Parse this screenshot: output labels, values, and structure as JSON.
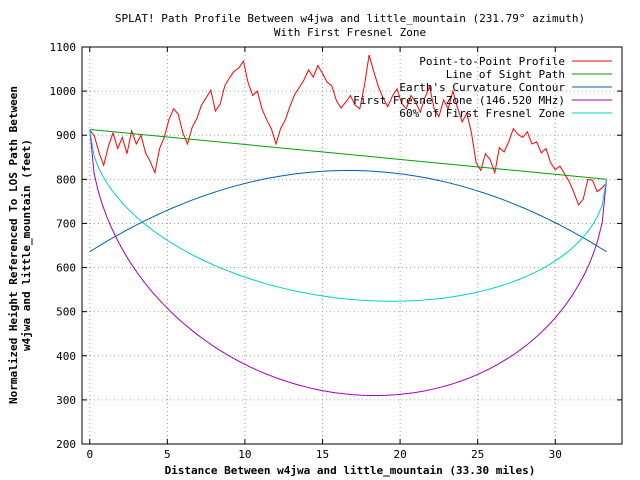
{
  "chart_data": {
    "type": "line",
    "title": "SPLAT! Path Profile Between w4jwa and little_mountain (231.79° azimuth)",
    "subtitle": "With First Fresnel Zone",
    "xlabel": "Distance Between w4jwa and little_mountain (33.30 miles)",
    "ylabel_line1": "Normalized Height Referenced To LOS Path Between",
    "ylabel_line2": "w4jwa and little_mountain (feet)",
    "xlim": [
      -0.5,
      34.3
    ],
    "ylim": [
      200,
      1100
    ],
    "x_ticks": [
      "0",
      "5",
      "10",
      "15",
      "20",
      "25",
      "30"
    ],
    "x_tick_values": [
      0,
      5,
      10,
      15,
      20,
      25,
      30
    ],
    "y_ticks": [
      "200",
      "300",
      "400",
      "500",
      "600",
      "700",
      "800",
      "900",
      "1000",
      "1100"
    ],
    "y_tick_values": [
      200,
      300,
      400,
      500,
      600,
      700,
      800,
      900,
      1000,
      1100
    ],
    "grid": true,
    "legend_position": "top-right",
    "series": [
      {
        "name": "Point-to-Point Profile",
        "color": "#ff0000",
        "x": [
          0,
          0.3,
          0.6,
          0.9,
          1.2,
          1.5,
          1.8,
          2.1,
          2.4,
          2.7,
          3.0,
          3.3,
          3.6,
          3.9,
          4.2,
          4.5,
          4.8,
          5.1,
          5.4,
          5.7,
          6.0,
          6.3,
          6.6,
          6.9,
          7.2,
          7.5,
          7.8,
          8.1,
          8.4,
          8.7,
          9.0,
          9.3,
          9.6,
          9.9,
          10.2,
          10.5,
          10.8,
          11.1,
          11.4,
          11.7,
          12.0,
          12.3,
          12.6,
          12.9,
          13.2,
          13.5,
          13.8,
          14.1,
          14.4,
          14.7,
          15.0,
          15.3,
          15.6,
          15.9,
          16.2,
          16.5,
          16.8,
          17.1,
          17.4,
          17.7,
          18.0,
          18.3,
          18.6,
          18.9,
          19.2,
          19.5,
          19.8,
          20.1,
          20.4,
          20.7,
          21.0,
          21.3,
          21.6,
          21.9,
          22.2,
          22.5,
          22.8,
          23.1,
          23.4,
          23.7,
          24.0,
          24.3,
          24.6,
          24.9,
          25.2,
          25.5,
          25.8,
          26.1,
          26.4,
          26.7,
          27.0,
          27.3,
          27.6,
          27.9,
          28.2,
          28.5,
          28.8,
          29.1,
          29.4,
          29.7,
          30.0,
          30.3,
          30.6,
          30.9,
          31.2,
          31.5,
          31.8,
          32.1,
          32.4,
          32.7,
          33.0,
          33.3
        ],
        "y": [
          912,
          898,
          860,
          832,
          875,
          905,
          870,
          895,
          858,
          910,
          880,
          900,
          860,
          840,
          815,
          870,
          895,
          935,
          960,
          948,
          905,
          880,
          918,
          938,
          968,
          985,
          1002,
          955,
          970,
          1012,
          1030,
          1045,
          1052,
          1068,
          1020,
          990,
          1000,
          960,
          935,
          915,
          880,
          915,
          935,
          965,
          992,
          1008,
          1025,
          1048,
          1032,
          1058,
          1040,
          1020,
          1012,
          978,
          962,
          975,
          990,
          968,
          960,
          1012,
          1082,
          1045,
          1010,
          985,
          965,
          988,
          1005,
          972,
          960,
          990,
          975,
          952,
          985,
          1010,
          960,
          942,
          980,
          960,
          1000,
          962,
          930,
          950,
          905,
          838,
          820,
          858,
          845,
          815,
          872,
          862,
          885,
          915,
          902,
          895,
          908,
          880,
          885,
          860,
          870,
          838,
          822,
          830,
          812,
          795,
          770,
          742,
          755,
          800,
          798,
          772,
          780,
          792
        ]
      },
      {
        "name": "Line of Sight Path",
        "color": "#00a000",
        "x": [
          0,
          33.3
        ],
        "y": [
          913,
          800
        ]
      },
      {
        "name": "Earth's Curvature Contour",
        "color": "#0060b0",
        "curve": "parabola",
        "x": [
          0,
          5,
          10,
          15,
          16.65,
          20,
          25,
          30,
          33.3
        ],
        "y": [
          636,
          740,
          795,
          818,
          820,
          812,
          764,
          684,
          636
        ]
      },
      {
        "name": "First Fresnel Zone (146.520 MHz)",
        "color": "#a000c0",
        "curve": "lower-ellipse",
        "x": [
          0,
          18,
          33.3
        ],
        "y": [
          913,
          310,
          800
        ]
      },
      {
        "name": "60% of First Fresnel Zone",
        "color": "#00d0d0",
        "curve": "lower-ellipse",
        "x": [
          0,
          18,
          33.3
        ],
        "y": [
          913,
          525,
          800
        ]
      }
    ]
  }
}
